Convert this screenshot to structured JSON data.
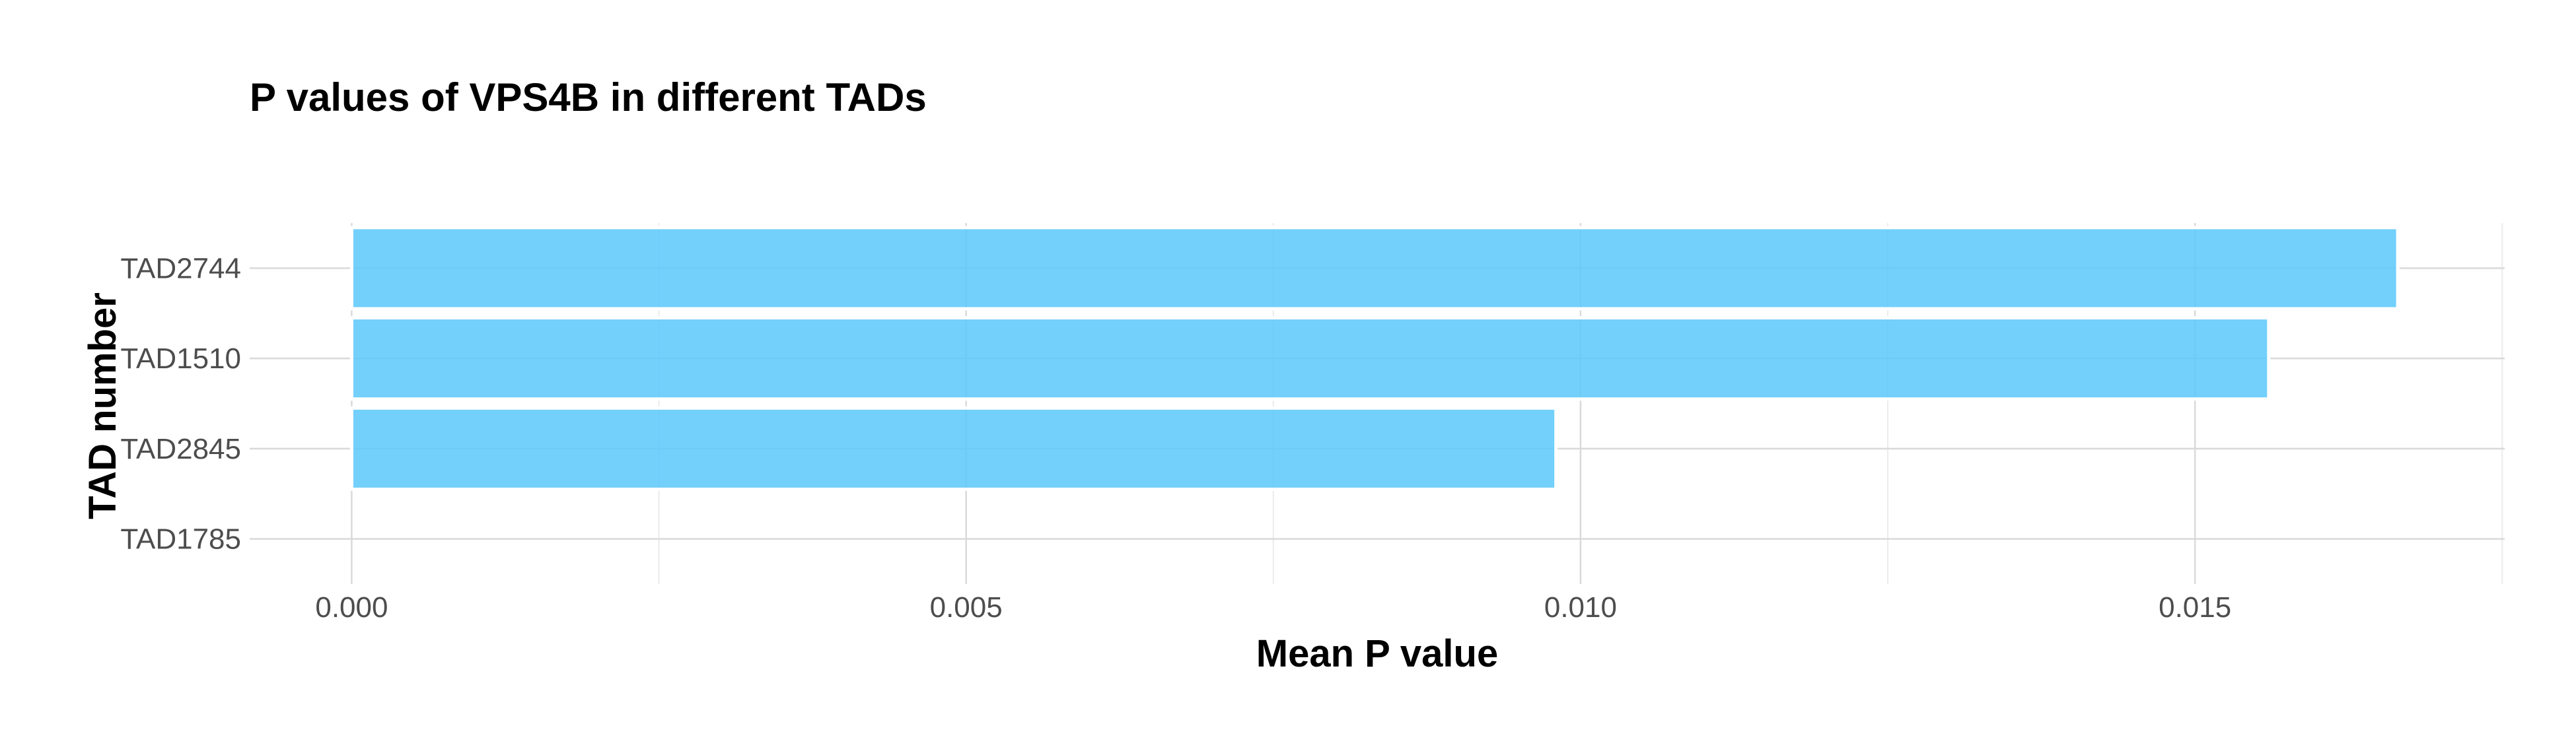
{
  "chart_data": {
    "type": "bar",
    "orientation": "horizontal",
    "title": "P values of VPS4B in different TADs",
    "xlabel": "Mean P value",
    "ylabel": "TAD number",
    "categories": [
      "TAD2744",
      "TAD1510",
      "TAD2845",
      "TAD1785"
    ],
    "values": [
      0.01665,
      0.0156,
      0.0098,
      0.0
    ],
    "xlim": [
      -0.00083,
      0.01752
    ],
    "x_ticks": [
      0.0,
      0.005,
      0.01,
      0.015
    ],
    "x_tick_labels": [
      "0.000",
      "0.005",
      "0.010",
      "0.015"
    ],
    "grid": true,
    "legend": "none",
    "colors": {
      "bar_fill": "#5ac8fa",
      "bar_stroke": "#ffffff",
      "grid_major": "#d9d9d9",
      "grid_minor": "#ebebeb"
    }
  }
}
